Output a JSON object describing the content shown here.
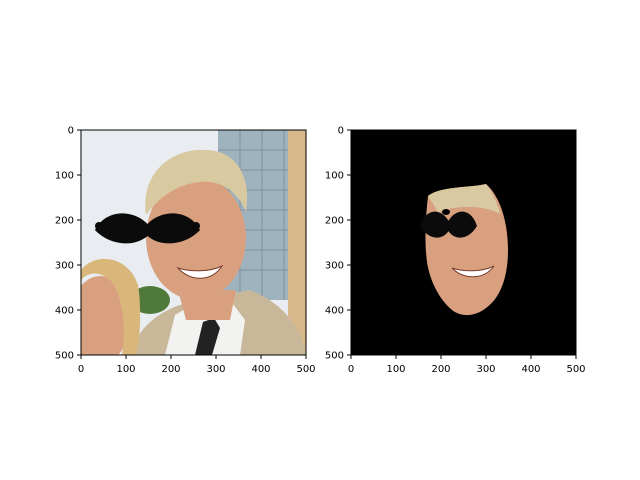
{
  "chart_data": [
    {
      "type": "image",
      "xlim": [
        0,
        500
      ],
      "ylim": [
        500,
        0
      ],
      "xticks": [
        0,
        100,
        200,
        300,
        400,
        500
      ],
      "yticks": [
        0,
        100,
        200,
        300,
        400,
        500
      ],
      "xtick_labels": [
        "0",
        "100",
        "200",
        "300",
        "400",
        "500"
      ],
      "ytick_labels": [
        "0",
        "100",
        "200",
        "300",
        "400",
        "500"
      ],
      "content": "photo with mustache overlay",
      "grid": false
    },
    {
      "type": "image",
      "xlim": [
        0,
        500
      ],
      "ylim": [
        500,
        0
      ],
      "xticks": [
        0,
        100,
        200,
        300,
        400,
        500
      ],
      "yticks": [
        0,
        100,
        200,
        300,
        400,
        500
      ],
      "xtick_labels": [
        "0",
        "100",
        "200",
        "300",
        "400",
        "500"
      ],
      "ytick_labels": [
        "0",
        "100",
        "200",
        "300",
        "400",
        "500"
      ],
      "content": "face mask on black background",
      "grid": false
    }
  ],
  "colors": {
    "sky": "#e9edf2",
    "building": "#9fb3bf",
    "skin": "#d9a080",
    "hair": "#d8c9a0",
    "jacket": "#c9b79a",
    "shirt": "#f2f2f0",
    "tie": "#222222",
    "mustache": "#0b0b0b",
    "mask_bg": "#000000"
  }
}
